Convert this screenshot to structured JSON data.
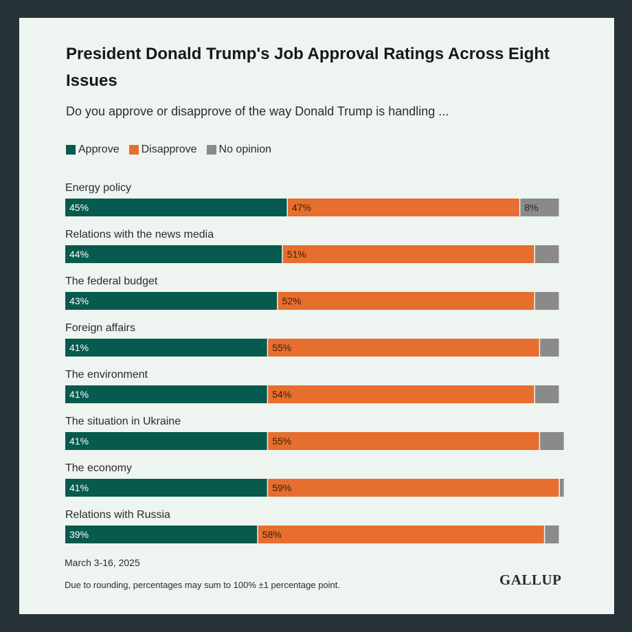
{
  "colors": {
    "approve": "#075a4e",
    "disapprove": "#e66e2e",
    "no_opinion": "#8a8a8a"
  },
  "chart_data": {
    "type": "bar",
    "orientation": "horizontal",
    "stacked": true,
    "title": "President Donald Trump's Job Approval Ratings Across Eight Issues",
    "subtitle": "Do you approve or disapprove of the way Donald Trump is handling ...",
    "legend": {
      "placement": "top-left",
      "entries": [
        "Approve",
        "Disapprove",
        "No opinion"
      ]
    },
    "categories": [
      "Energy policy",
      "Relations with the news media",
      "The federal budget",
      "Foreign affairs",
      "The environment",
      "The situation in Ukraine",
      "The economy",
      "Relations with Russia"
    ],
    "series": [
      {
        "name": "Approve",
        "values": [
          45,
          44,
          43,
          41,
          41,
          41,
          41,
          39
        ],
        "labels": [
          "45%",
          "44%",
          "43%",
          "41%",
          "41%",
          "41%",
          "41%",
          "39%"
        ]
      },
      {
        "name": "Disapprove",
        "values": [
          47,
          51,
          52,
          55,
          54,
          55,
          59,
          58
        ],
        "labels": [
          "47%",
          "51%",
          "52%",
          "55%",
          "54%",
          "55%",
          "59%",
          "58%"
        ]
      },
      {
        "name": "No opinion",
        "values": [
          8,
          5,
          5,
          4,
          5,
          5,
          1,
          3
        ],
        "labels": [
          "8%",
          "",
          "",
          "",
          "",
          "",
          "",
          ""
        ]
      }
    ],
    "xlim": [
      0,
      100
    ],
    "grid": false
  },
  "footer": {
    "date": "March 3-16, 2025",
    "note": "Due to rounding, percentages may sum to 100% ±1 percentage point.",
    "brand": "GALLUP"
  }
}
